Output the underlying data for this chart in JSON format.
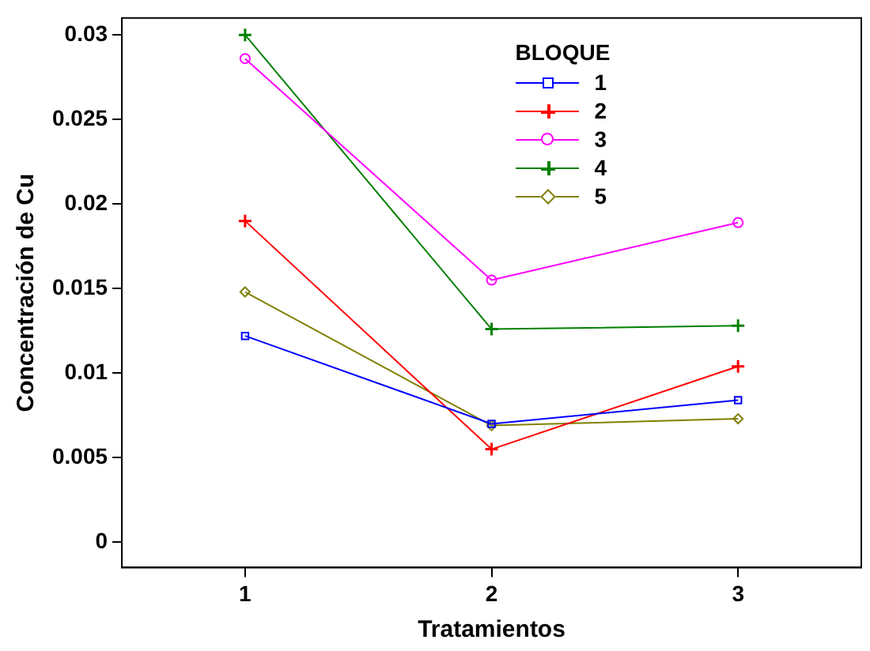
{
  "chart_data": {
    "type": "line",
    "xlabel": "Tratamientos",
    "ylabel": "Concentración de Cu",
    "legend_title": "BLOQUE",
    "legend": "top",
    "grid": false,
    "categories": [
      "1",
      "2",
      "3"
    ],
    "ylim": [
      -0.0015,
      0.031
    ],
    "yticks": [
      0,
      0.005,
      0.01,
      0.015,
      0.02,
      0.025,
      0.03
    ],
    "series": [
      {
        "name": "1",
        "color": "#0000ff",
        "marker": "square",
        "values": [
          0.0122,
          0.007,
          0.0084
        ]
      },
      {
        "name": "2",
        "color": "#ff0000",
        "marker": "cross",
        "values": [
          0.019,
          0.0055,
          0.0104
        ]
      },
      {
        "name": "3",
        "color": "#ff00ff",
        "marker": "circle",
        "values": [
          0.0286,
          0.0155,
          0.0189
        ]
      },
      {
        "name": "4",
        "color": "#008000",
        "marker": "cross",
        "values": [
          0.03,
          0.0126,
          0.0128
        ]
      },
      {
        "name": "5",
        "color": "#808000",
        "marker": "diamond",
        "values": [
          0.0148,
          0.0069,
          0.0073
        ]
      }
    ]
  }
}
